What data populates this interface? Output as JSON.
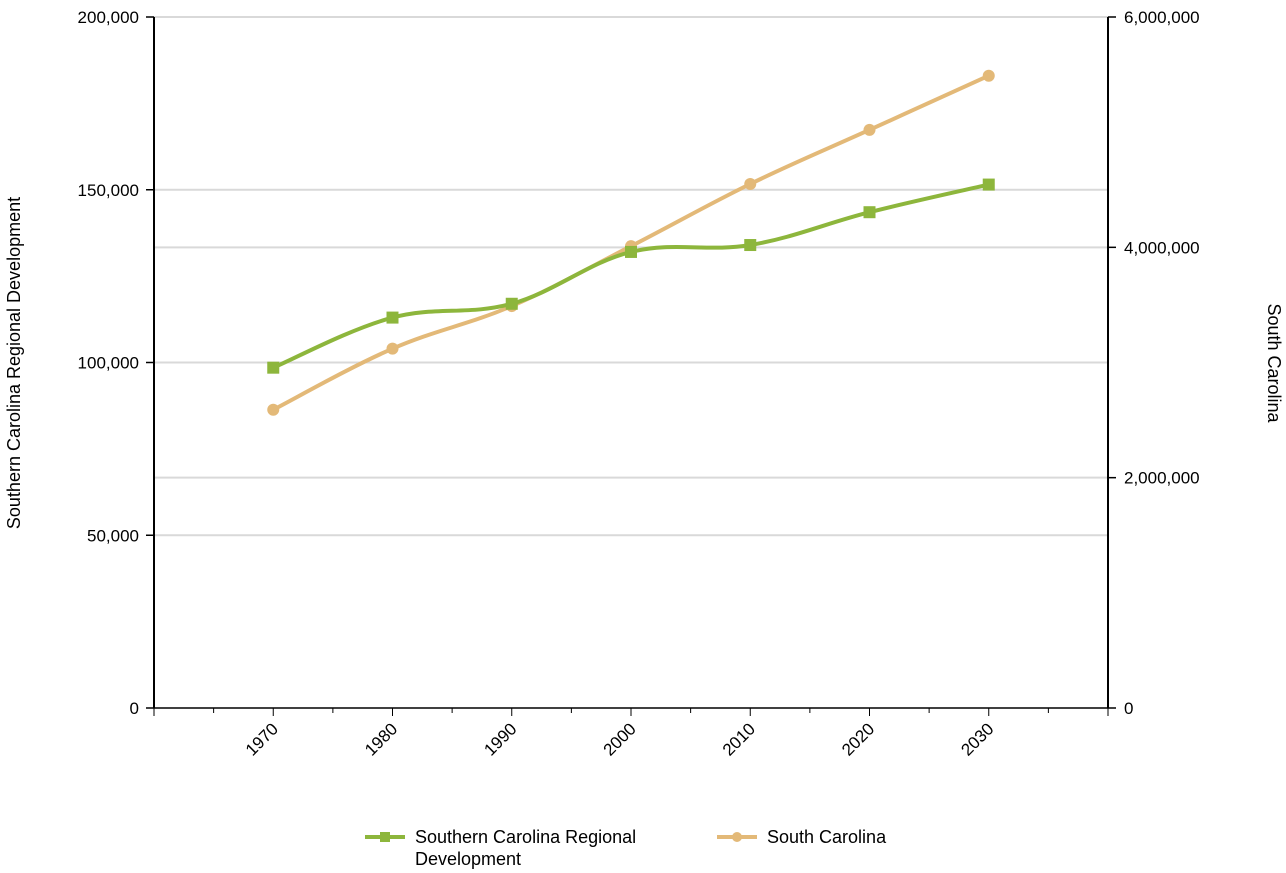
{
  "chart_data": {
    "type": "line",
    "categories": [
      "1970",
      "1980",
      "1990",
      "2000",
      "2010",
      "2020",
      "2030"
    ],
    "series": [
      {
        "name": "Southern Carolina Regional Development",
        "axis": "left",
        "marker": "square",
        "color": "#8db63c",
        "values": [
          98500,
          113000,
          117000,
          132000,
          134000,
          143500,
          151500
        ]
      },
      {
        "name": "South Carolina",
        "axis": "right",
        "marker": "circle",
        "color": "#e3b978",
        "values": [
          2590000,
          3120000,
          3490000,
          4010000,
          4550000,
          5020000,
          5490000
        ]
      }
    ],
    "left_axis": {
      "label": "Southern Carolina Regional Development",
      "ylim": [
        0,
        200000
      ],
      "ticks": [
        0,
        50000,
        100000,
        150000,
        200000
      ],
      "tick_labels": [
        "0",
        "50,000",
        "100,000",
        "150,000",
        "200,000"
      ]
    },
    "right_axis": {
      "label": "South Carolina",
      "ylim": [
        0,
        6000000
      ],
      "ticks": [
        0,
        2000000,
        4000000,
        6000000
      ],
      "tick_labels": [
        "0",
        "2,000,000",
        "4,000,000",
        "6,000,000"
      ]
    },
    "x_range": [
      1960,
      2040
    ],
    "grid": true,
    "legend_position": "bottom"
  }
}
